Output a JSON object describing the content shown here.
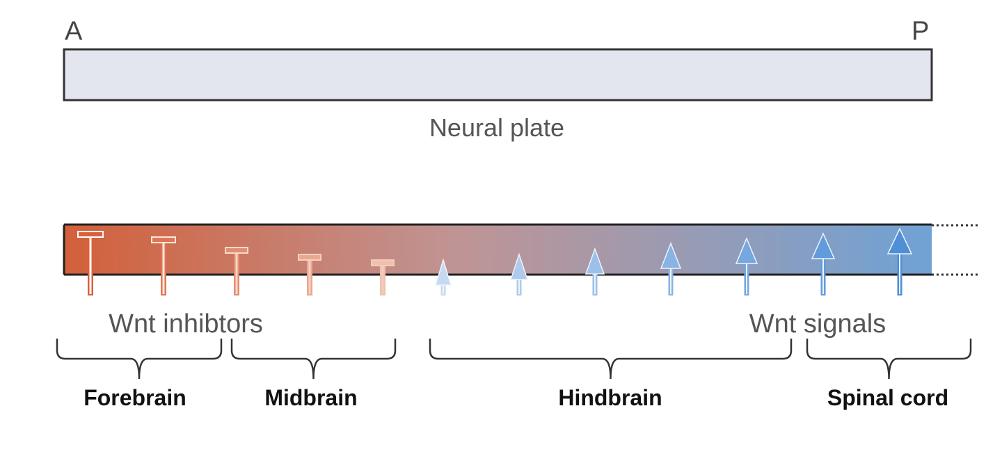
{
  "axis": {
    "anterior": "A",
    "posterior": "P"
  },
  "neural_plate": {
    "label": "Neural plate"
  },
  "gradient": {
    "anterior_color": "#d2603a",
    "middle_color": "#c09494",
    "posterior_color": "#6fa2d5"
  },
  "signals": {
    "inhibitors_label": "Wnt inhibtors",
    "wnt_label": "Wnt signals",
    "inhibitor_color": "#d9603f",
    "wnt_color": "#5b9bd8"
  },
  "regions": [
    {
      "label": "Forebrain"
    },
    {
      "label": "Midbrain"
    },
    {
      "label": "Hindbrain"
    },
    {
      "label": "Spinal cord"
    }
  ],
  "colors": {
    "plate_fill": "#e3e6ee",
    "outline": "#333333",
    "brace": "#333333"
  }
}
